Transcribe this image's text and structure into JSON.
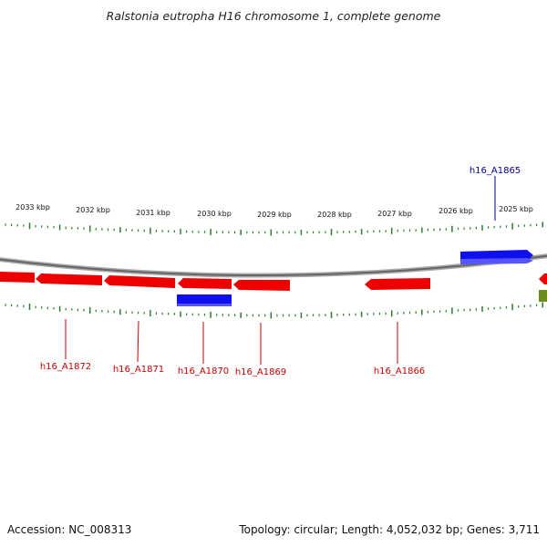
{
  "title": "Ralstonia eutropha H16 chromosome 1, complete genome",
  "accession": "Accession: NC_008313",
  "summary": "Topology: circular; Length: 4,052,032 bp; Genes: 3,711",
  "scale_labels": [
    "2033 kbp",
    "2032 kbp",
    "2031 kbp",
    "2030 kbp",
    "2029 kbp",
    "2028 kbp",
    "2027 kbp",
    "2026 kbp",
    "2025 kbp"
  ],
  "gene_labels": {
    "h16_A1865": "h16_A1865",
    "h16_A1866": "h16_A1866",
    "h16_A1869": "h16_A1869",
    "h16_A1870": "h16_A1870",
    "h16_A1871": "h16_A1871",
    "h16_A1872": "h16_A1872"
  },
  "colors": {
    "reverse_gene": "#ee0000",
    "forward_gene": "#0000ee",
    "other_feature": "#6b8e23",
    "tick": "#2e7d32",
    "backbone": "#888888",
    "label_red": "#cc0000",
    "label_blue": "#00008b"
  }
}
